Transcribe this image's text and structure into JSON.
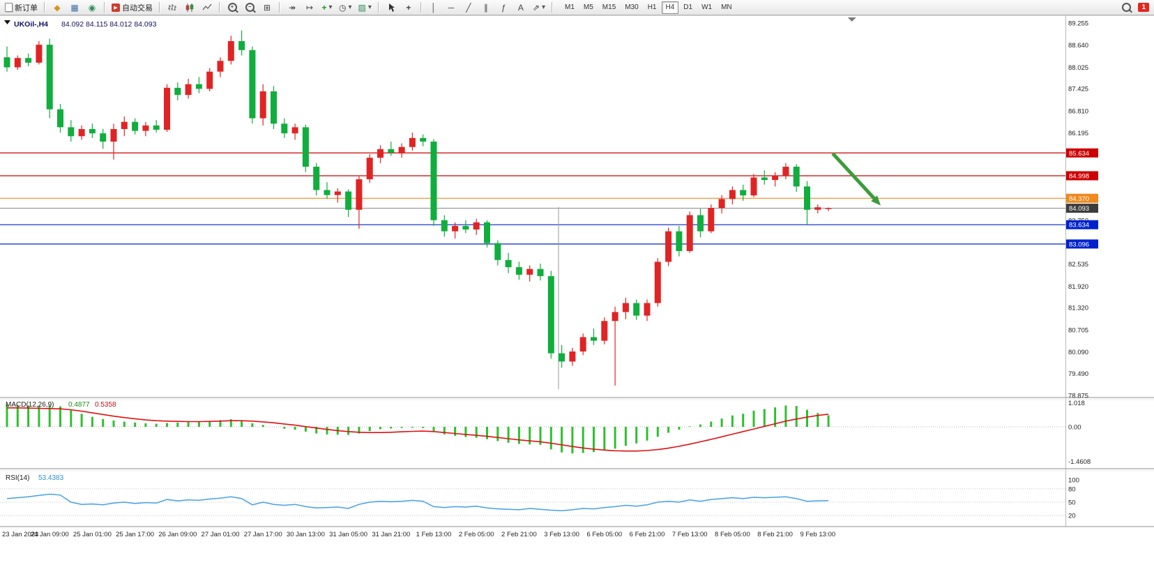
{
  "toolbar": {
    "new_order": "新订单",
    "auto_trading": "自动交易",
    "badge": "1",
    "active_timeframe": "H4",
    "timeframes": [
      "M1",
      "M5",
      "M15",
      "M30",
      "H1",
      "H4",
      "D1",
      "W1",
      "MN"
    ],
    "glyphs": {
      "chart_window": "◆",
      "market_watch": "▦",
      "navigator": "◉",
      "autotrade_arrow": "▶",
      "tile_windows": "⊞",
      "auto_scroll": "↠",
      "chart_shift": "↦",
      "indicator_plus": "+",
      "clock": "◷",
      "snapshot": "▨",
      "dropdown": "▾",
      "crosshair": "+",
      "vertical_line": "│",
      "horizontal_line": "─",
      "trendline": "╱",
      "channel": "∥",
      "fibonacci": "ƒ",
      "text_tool": "A",
      "arrows_tool": "⇗",
      "zoom_in_sign": "+",
      "zoom_out_sign": "−"
    }
  },
  "chart": {
    "symbol": "UKOil-,H4",
    "ohlc_text": "84.092 84.115 84.012 84.093",
    "colors": {
      "candle_up": "#e02424",
      "candle_down": "#0fae3d",
      "macd_hist": "#2fbf2f",
      "macd_signal": "#e01010",
      "rsi_line": "#45a0e6",
      "level_red": "#cc0000",
      "level_orange": "#ef8a1e",
      "level_blue": "#0022cc",
      "current_line": "#8a8a8a",
      "current_tag_bg": "#3d3d3d",
      "arrow_green": "#3a9d3a"
    },
    "price_axis_labels": [
      "89.255",
      "88.640",
      "88.025",
      "87.425",
      "86.810",
      "86.195",
      "83.750",
      "82.535",
      "81.920",
      "81.320",
      "80.705",
      "80.090",
      "79.490",
      "78.875"
    ],
    "levels": [
      {
        "label": "85.634",
        "price": 85.634,
        "color": "#cc0000"
      },
      {
        "label": "84.998",
        "price": 84.998,
        "color": "#cc0000"
      },
      {
        "label": "84.370",
        "price": 84.37,
        "color": "#ef8a1e"
      },
      {
        "label": "83.634",
        "price": 83.634,
        "color": "#0022cc"
      },
      {
        "label": "83.096",
        "price": 83.096,
        "color": "#0022cc"
      }
    ],
    "current_price": {
      "label": "84.093",
      "price": 84.093
    }
  },
  "indicators": {
    "macd": {
      "label": "MACD(12,26,9)",
      "value_main": "0.4877",
      "value_signal": "0.5358",
      "axis_labels": [
        {
          "text": "1.018",
          "value": 1.018
        },
        {
          "text": "0.00",
          "value": 0
        },
        {
          "text": "-1.4608",
          "value": -1.4608
        }
      ]
    },
    "rsi": {
      "label": "RSI(14)",
      "value": "53.4383",
      "axis_labels": [
        {
          "text": "100",
          "value": 100
        },
        {
          "text": "80",
          "value": 80
        },
        {
          "text": "50",
          "value": 50
        },
        {
          "text": "20",
          "value": 20
        }
      ],
      "level_lines": [
        80,
        50,
        20
      ]
    }
  },
  "time_axis": {
    "labels": [
      "23 Jan 2023",
      "24 Jan 09:00",
      "25 Jan 01:00",
      "25 Jan 17:00",
      "26 Jan 09:00",
      "27 Jan 01:00",
      "27 Jan 17:00",
      "30 Jan 13:00",
      "31 Jan 05:00",
      "31 Jan 21:00",
      "1 Feb 13:00",
      "2 Feb 05:00",
      "2 Feb 21:00",
      "3 Feb 13:00",
      "6 Feb 05:00",
      "6 Feb 21:00",
      "7 Feb 13:00",
      "8 Feb 05:00",
      "8 Feb 21:00",
      "9 Feb 13:00"
    ],
    "bars_per_label": 4
  },
  "chart_data": {
    "type": "candlestick",
    "title": "UKOil- H4",
    "price_range": [
      78.875,
      89.255
    ],
    "candles": [
      [
        88.3,
        88.6,
        87.9,
        88.02
      ],
      [
        88.02,
        88.35,
        87.95,
        88.28
      ],
      [
        88.28,
        88.4,
        88.05,
        88.15
      ],
      [
        88.15,
        88.75,
        88.1,
        88.65
      ],
      [
        88.65,
        88.82,
        86.6,
        86.85
      ],
      [
        86.85,
        87.0,
        86.2,
        86.35
      ],
      [
        86.35,
        86.55,
        85.95,
        86.1
      ],
      [
        86.1,
        86.4,
        86.0,
        86.3
      ],
      [
        86.3,
        86.45,
        86.05,
        86.18
      ],
      [
        86.18,
        86.3,
        85.75,
        85.95
      ],
      [
        85.95,
        86.45,
        85.45,
        86.3
      ],
      [
        86.3,
        86.65,
        86.1,
        86.5
      ],
      [
        86.5,
        86.6,
        86.15,
        86.25
      ],
      [
        86.25,
        86.5,
        86.1,
        86.4
      ],
      [
        86.4,
        86.55,
        86.2,
        86.28
      ],
      [
        86.28,
        87.55,
        86.22,
        87.45
      ],
      [
        87.45,
        87.6,
        87.1,
        87.25
      ],
      [
        87.25,
        87.7,
        87.15,
        87.55
      ],
      [
        87.55,
        87.75,
        87.3,
        87.42
      ],
      [
        87.42,
        88.0,
        87.35,
        87.9
      ],
      [
        87.9,
        88.3,
        87.75,
        88.2
      ],
      [
        88.2,
        88.9,
        88.1,
        88.75
      ],
      [
        88.75,
        89.05,
        88.35,
        88.5
      ],
      [
        88.5,
        88.6,
        86.45,
        86.6
      ],
      [
        86.6,
        87.55,
        86.4,
        87.35
      ],
      [
        87.35,
        87.5,
        86.3,
        86.45
      ],
      [
        86.45,
        86.6,
        86.05,
        86.18
      ],
      [
        86.18,
        86.45,
        86.0,
        86.35
      ],
      [
        86.35,
        86.42,
        85.1,
        85.25
      ],
      [
        85.25,
        85.35,
        84.45,
        84.6
      ],
      [
        84.6,
        84.82,
        84.35,
        84.46
      ],
      [
        84.46,
        84.65,
        84.25,
        84.56
      ],
      [
        84.56,
        84.62,
        83.85,
        84.05
      ],
      [
        84.05,
        84.98,
        83.52,
        84.9
      ],
      [
        84.9,
        85.6,
        84.8,
        85.5
      ],
      [
        85.5,
        85.85,
        85.35,
        85.74
      ],
      [
        85.74,
        85.95,
        85.55,
        85.64
      ],
      [
        85.64,
        85.9,
        85.5,
        85.8
      ],
      [
        85.8,
        86.2,
        85.7,
        86.05
      ],
      [
        86.05,
        86.15,
        85.82,
        85.95
      ],
      [
        85.95,
        86.02,
        83.6,
        83.76
      ],
      [
        83.76,
        83.9,
        83.3,
        83.45
      ],
      [
        83.45,
        83.7,
        83.25,
        83.6
      ],
      [
        83.6,
        83.76,
        83.4,
        83.5
      ],
      [
        83.5,
        83.8,
        83.35,
        83.7
      ],
      [
        83.7,
        83.76,
        83.0,
        83.12
      ],
      [
        83.12,
        83.2,
        82.5,
        82.65
      ],
      [
        82.65,
        82.85,
        82.28,
        82.45
      ],
      [
        82.45,
        82.6,
        82.1,
        82.24
      ],
      [
        82.24,
        82.5,
        82.05,
        82.4
      ],
      [
        82.4,
        82.55,
        82.08,
        82.2
      ],
      [
        82.2,
        82.35,
        79.9,
        80.05
      ],
      [
        80.05,
        80.28,
        79.65,
        79.82
      ],
      [
        79.82,
        80.2,
        79.7,
        80.1
      ],
      [
        80.1,
        80.6,
        80.0,
        80.5
      ],
      [
        80.5,
        80.74,
        80.28,
        80.4
      ],
      [
        80.4,
        81.05,
        80.3,
        80.95
      ],
      [
        80.95,
        81.35,
        79.15,
        81.2
      ],
      [
        81.2,
        81.6,
        81.0,
        81.45
      ],
      [
        81.45,
        81.55,
        80.98,
        81.1
      ],
      [
        81.1,
        81.55,
        80.95,
        81.45
      ],
      [
        81.45,
        82.7,
        81.35,
        82.6
      ],
      [
        82.6,
        83.55,
        82.48,
        83.45
      ],
      [
        83.45,
        83.6,
        82.75,
        82.9
      ],
      [
        82.9,
        84.0,
        82.85,
        83.9
      ],
      [
        83.9,
        84.08,
        83.28,
        83.45
      ],
      [
        83.45,
        84.2,
        83.4,
        84.1
      ],
      [
        84.1,
        84.46,
        83.95,
        84.35
      ],
      [
        84.35,
        84.7,
        84.2,
        84.6
      ],
      [
        84.6,
        84.75,
        84.3,
        84.45
      ],
      [
        84.45,
        85.05,
        84.4,
        84.95
      ],
      [
        84.95,
        85.15,
        84.75,
        84.88
      ],
      [
        84.88,
        85.1,
        84.7,
        85.0
      ],
      [
        85.0,
        85.35,
        84.9,
        85.25
      ],
      [
        85.25,
        85.32,
        84.55,
        84.7
      ],
      [
        84.7,
        84.85,
        83.65,
        84.05
      ],
      [
        84.05,
        84.2,
        83.95,
        84.12
      ],
      [
        84.092,
        84.115,
        84.012,
        84.093
      ]
    ],
    "macd_hist": [
      0.95,
      0.92,
      0.9,
      0.88,
      0.9,
      0.86,
      0.7,
      0.55,
      0.42,
      0.33,
      0.27,
      0.22,
      0.18,
      0.15,
      0.13,
      0.16,
      0.18,
      0.2,
      0.22,
      0.25,
      0.28,
      0.32,
      0.28,
      0.15,
      0.08,
      0.0,
      -0.08,
      -0.12,
      -0.2,
      -0.28,
      -0.32,
      -0.33,
      -0.34,
      -0.28,
      -0.18,
      -0.1,
      -0.07,
      -0.05,
      -0.04,
      -0.05,
      -0.2,
      -0.32,
      -0.38,
      -0.43,
      -0.46,
      -0.52,
      -0.6,
      -0.67,
      -0.72,
      -0.74,
      -0.76,
      -0.95,
      -1.08,
      -1.12,
      -1.1,
      -1.06,
      -1.0,
      -0.92,
      -0.8,
      -0.7,
      -0.58,
      -0.42,
      -0.25,
      -0.12,
      0.02,
      0.1,
      0.22,
      0.35,
      0.48,
      0.55,
      0.68,
      0.75,
      0.82,
      0.9,
      0.88,
      0.72,
      0.58,
      0.4877
    ],
    "macd_signal": [
      0.8,
      0.8,
      0.79,
      0.78,
      0.77,
      0.76,
      0.72,
      0.66,
      0.59,
      0.52,
      0.45,
      0.39,
      0.34,
      0.29,
      0.26,
      0.24,
      0.23,
      0.22,
      0.22,
      0.23,
      0.24,
      0.26,
      0.26,
      0.24,
      0.21,
      0.17,
      0.12,
      0.07,
      0.01,
      -0.05,
      -0.11,
      -0.16,
      -0.2,
      -0.23,
      -0.24,
      -0.24,
      -0.23,
      -0.21,
      -0.19,
      -0.18,
      -0.2,
      -0.24,
      -0.28,
      -0.32,
      -0.36,
      -0.4,
      -0.45,
      -0.5,
      -0.55,
      -0.59,
      -0.63,
      -0.69,
      -0.76,
      -0.83,
      -0.89,
      -0.94,
      -0.98,
      -1.01,
      -1.02,
      -1.02,
      -1.0,
      -0.96,
      -0.9,
      -0.82,
      -0.73,
      -0.63,
      -0.53,
      -0.42,
      -0.31,
      -0.2,
      -0.09,
      0.02,
      0.13,
      0.24,
      0.33,
      0.41,
      0.48,
      0.5358
    ],
    "rsi": [
      58,
      60,
      62,
      65,
      68,
      66,
      50,
      45,
      46,
      44,
      48,
      50,
      47,
      49,
      48,
      56,
      53,
      55,
      54,
      57,
      59,
      62,
      58,
      44,
      50,
      45,
      43,
      45,
      40,
      37,
      38,
      39,
      36,
      45,
      50,
      52,
      51,
      52,
      54,
      52,
      40,
      38,
      40,
      39,
      41,
      37,
      35,
      34,
      33,
      36,
      34,
      32,
      31,
      33,
      36,
      35,
      38,
      40,
      43,
      41,
      44,
      50,
      52,
      50,
      55,
      52,
      56,
      58,
      60,
      58,
      61,
      60,
      61,
      62,
      58,
      52,
      53,
      53.4383
    ]
  },
  "annotations": {
    "arrow": {
      "from_bar": 77.4,
      "from_price": 85.62,
      "to_bar": 81.9,
      "to_price": 84.17
    },
    "vline": {
      "bar": 51.7,
      "price_from": 84.12,
      "price_to": 79.05
    },
    "shift_marker_bar": 79.2
  }
}
